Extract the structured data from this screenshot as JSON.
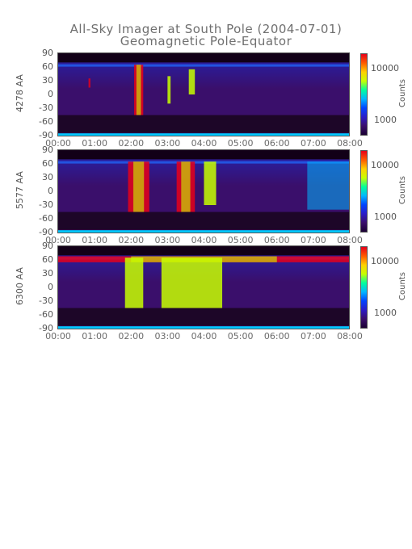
{
  "title": "All-Sky Imager at South Pole (2004-07-01)",
  "subtitle": "Geomagnetic Pole-Equator",
  "colorbar_colors": [
    "#1a0033",
    "#3a0f6b",
    "#2b1cc8",
    "#0044ff",
    "#00b7ff",
    "#00ff9c",
    "#c8ff00",
    "#ffd000",
    "#ff5a00",
    "#e8001a"
  ],
  "chart_data": [
    {
      "type": "heatmap",
      "ylabel": "4278 AA",
      "xlabel": "",
      "x_ticks": [
        "00:00",
        "01:00",
        "02:00",
        "03:00",
        "04:00",
        "05:00",
        "06:00",
        "07:00",
        "08:00"
      ],
      "y_ticks": [
        "90",
        "60",
        "30",
        "0",
        "-30",
        "-60",
        "-90"
      ],
      "ylim": [
        -90,
        90
      ],
      "xlim": [
        "00:00",
        "08:00"
      ],
      "colorbar_label": "Counts",
      "colorbar_ticks": [
        "10000",
        "1000"
      ],
      "colorbar_scale": "log",
      "bright_intervals": [
        {
          "start": "02:05",
          "end": "02:20",
          "lat_min": -45,
          "lat_max": 65,
          "level": "high"
        },
        {
          "start": "03:00",
          "end": "03:05",
          "lat_min": -20,
          "lat_max": 40,
          "level": "medium"
        },
        {
          "start": "03:35",
          "end": "03:45",
          "lat_min": 0,
          "lat_max": 55,
          "level": "medium"
        },
        {
          "start": "00:50",
          "end": "00:53",
          "lat_min": 15,
          "lat_max": 35,
          "level": "high"
        }
      ]
    },
    {
      "type": "heatmap",
      "ylabel": "5577 AA",
      "xlabel": "",
      "x_ticks": [
        "00:00",
        "01:00",
        "02:00",
        "03:00",
        "04:00",
        "05:00",
        "06:00",
        "07:00",
        "08:00"
      ],
      "y_ticks": [
        "90",
        "60",
        "30",
        "0",
        "-30",
        "-60",
        "-90"
      ],
      "ylim": [
        -90,
        90
      ],
      "xlim": [
        "00:00",
        "08:00"
      ],
      "colorbar_label": "Counts",
      "colorbar_ticks": [
        "10000",
        "1000"
      ],
      "colorbar_scale": "log",
      "bright_intervals": [
        {
          "start": "01:55",
          "end": "02:30",
          "lat_min": -45,
          "lat_max": 65,
          "level": "high"
        },
        {
          "start": "03:15",
          "end": "03:45",
          "lat_min": -45,
          "lat_max": 65,
          "level": "high"
        },
        {
          "start": "04:00",
          "end": "04:20",
          "lat_min": -30,
          "lat_max": 65,
          "level": "medium"
        },
        {
          "start": "06:50",
          "end": "08:00",
          "lat_min": -40,
          "lat_max": 65,
          "level": "low"
        }
      ]
    },
    {
      "type": "heatmap",
      "ylabel": "6300 AA",
      "xlabel": "",
      "x_ticks": [
        "00:00",
        "01:00",
        "02:00",
        "03:00",
        "04:00",
        "05:00",
        "06:00",
        "07:00",
        "08:00"
      ],
      "y_ticks": [
        "90",
        "60",
        "30",
        "0",
        "-30",
        "-60",
        "-90"
      ],
      "ylim": [
        -90,
        90
      ],
      "xlim": [
        "00:00",
        "08:00"
      ],
      "colorbar_label": "Counts",
      "colorbar_ticks": [
        "10000",
        "1000"
      ],
      "colorbar_scale": "log",
      "bright_intervals": [
        {
          "start": "00:00",
          "end": "08:00",
          "lat_min": 55,
          "lat_max": 68,
          "level": "high"
        },
        {
          "start": "01:50",
          "end": "02:20",
          "lat_min": -45,
          "lat_max": 65,
          "level": "medium"
        },
        {
          "start": "02:50",
          "end": "04:30",
          "lat_min": -45,
          "lat_max": 65,
          "level": "medium"
        }
      ]
    }
  ]
}
